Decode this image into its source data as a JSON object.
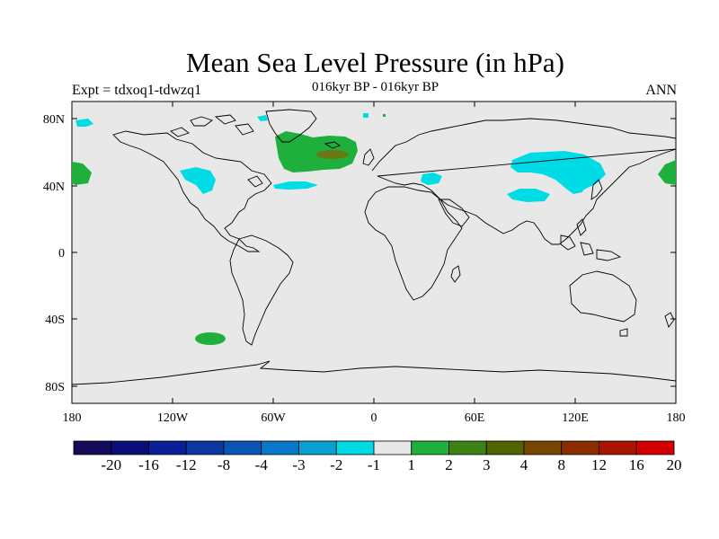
{
  "map": {
    "title": "Mean Sea Level Pressure (in hPa)",
    "subtitle": "016kyr BP - 016kyr BP",
    "left_label": "Expt = tdxoq1-tdwzq1",
    "right_label": "ANN",
    "lon_ticks": [
      "180",
      "120W",
      "60W",
      "0",
      "60E",
      "120E",
      "180"
    ],
    "lat_ticks": [
      "80N",
      "40N",
      "0",
      "40S",
      "80S"
    ],
    "colorbar": {
      "labels": [
        "-20",
        "-16",
        "-12",
        "-8",
        "-4",
        "-3",
        "-2",
        "-1",
        "1",
        "2",
        "3",
        "4",
        "8",
        "12",
        "16",
        "20"
      ],
      "colors": [
        "#140c5a",
        "#0a0f78",
        "#0a1e96",
        "#0a37a0",
        "#0a55b4",
        "#0a78c8",
        "#0aa0d2",
        "#00dce6",
        "#e8e8e8",
        "#1eaf3c",
        "#3c8214",
        "#506400",
        "#784600",
        "#8c2d00",
        "#aa1400",
        "#d20000"
      ]
    }
  }
}
